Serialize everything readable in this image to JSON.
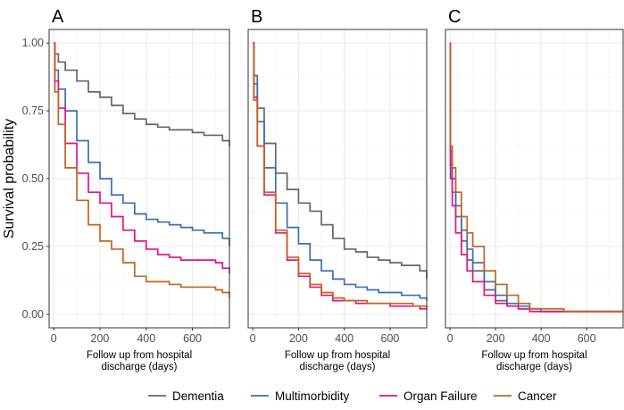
{
  "chart_data": {
    "type": "line",
    "ylabel": "Survival probability",
    "xlabel": "Follow up from hospital discharge (days)",
    "xlabel_lines": [
      "Follow up from hospital",
      "discharge (days)"
    ],
    "xlim": [
      -20,
      760
    ],
    "ylim": [
      -0.05,
      1.05
    ],
    "x_ticks": [
      0,
      200,
      400,
      600
    ],
    "y_ticks": [
      0,
      0.25,
      0.5,
      0.75,
      1
    ],
    "y_tick_labels": [
      "0.00",
      "0.25",
      "0.50",
      "0.75",
      "1.00"
    ],
    "grid": true,
    "legend_position": "bottom",
    "legend": [
      {
        "name": "Dementia",
        "color": "#666666"
      },
      {
        "name": "Multimorbidity",
        "color": "#3a6fb5"
      },
      {
        "name": "Organ Failure",
        "color": "#e4128a"
      },
      {
        "name": "Cancer",
        "color": "#c1651f"
      }
    ],
    "panels": [
      {
        "tag": "A",
        "series": [
          {
            "name": "Dementia",
            "color": "#666666",
            "x": [
              0,
              5,
              20,
              50,
              100,
              150,
              200,
              250,
              300,
              350,
              400,
              450,
              500,
              550,
              600,
              650,
              700,
              730,
              760
            ],
            "y": [
              1.0,
              0.96,
              0.93,
              0.9,
              0.86,
              0.82,
              0.8,
              0.77,
              0.74,
              0.72,
              0.7,
              0.69,
              0.68,
              0.68,
              0.67,
              0.66,
              0.66,
              0.64,
              0.62
            ]
          },
          {
            "name": "Multimorbidity",
            "color": "#3a6fb5",
            "x": [
              0,
              5,
              20,
              50,
              100,
              150,
              200,
              250,
              300,
              350,
              400,
              450,
              500,
              550,
              600,
              650,
              700,
              730,
              760
            ],
            "y": [
              1.0,
              0.9,
              0.83,
              0.75,
              0.64,
              0.56,
              0.5,
              0.44,
              0.41,
              0.37,
              0.35,
              0.34,
              0.33,
              0.32,
              0.31,
              0.3,
              0.3,
              0.28,
              0.25
            ]
          },
          {
            "name": "Organ Failure",
            "color": "#e4128a",
            "x": [
              0,
              5,
              20,
              50,
              100,
              150,
              200,
              250,
              300,
              350,
              400,
              450,
              500,
              550,
              600,
              650,
              700,
              730,
              760
            ],
            "y": [
              1.0,
              0.86,
              0.76,
              0.63,
              0.52,
              0.45,
              0.41,
              0.36,
              0.31,
              0.27,
              0.24,
              0.22,
              0.21,
              0.2,
              0.2,
              0.2,
              0.19,
              0.17,
              0.15
            ]
          },
          {
            "name": "Cancer",
            "color": "#c1651f",
            "x": [
              0,
              5,
              20,
              50,
              100,
              150,
              200,
              250,
              300,
              350,
              400,
              450,
              500,
              550,
              600,
              650,
              700,
              730,
              760
            ],
            "y": [
              1.0,
              0.82,
              0.7,
              0.54,
              0.42,
              0.33,
              0.27,
              0.24,
              0.19,
              0.14,
              0.12,
              0.12,
              0.11,
              0.1,
              0.1,
              0.1,
              0.09,
              0.08,
              0.06
            ]
          }
        ]
      },
      {
        "tag": "B",
        "series": [
          {
            "name": "Dementia",
            "color": "#666666",
            "x": [
              0,
              5,
              20,
              50,
              100,
              150,
              200,
              250,
              300,
              350,
              400,
              450,
              500,
              550,
              600,
              650,
              700,
              730,
              760
            ],
            "y": [
              1.0,
              0.88,
              0.76,
              0.63,
              0.52,
              0.46,
              0.41,
              0.38,
              0.33,
              0.28,
              0.24,
              0.23,
              0.21,
              0.2,
              0.19,
              0.18,
              0.18,
              0.16,
              0.13
            ]
          },
          {
            "name": "Multimorbidity",
            "color": "#3a6fb5",
            "x": [
              0,
              5,
              20,
              50,
              100,
              150,
              200,
              250,
              300,
              350,
              400,
              450,
              500,
              550,
              600,
              650,
              700,
              730,
              760
            ],
            "y": [
              1.0,
              0.85,
              0.71,
              0.54,
              0.41,
              0.32,
              0.26,
              0.2,
              0.16,
              0.13,
              0.11,
              0.1,
              0.09,
              0.08,
              0.08,
              0.07,
              0.07,
              0.06,
              0.05
            ]
          },
          {
            "name": "Organ Failure",
            "color": "#e4128a",
            "x": [
              0,
              5,
              20,
              50,
              100,
              150,
              200,
              250,
              300,
              350,
              400,
              450,
              500,
              550,
              600,
              650,
              700,
              730,
              760
            ],
            "y": [
              1.0,
              0.8,
              0.62,
              0.44,
              0.3,
              0.2,
              0.14,
              0.1,
              0.07,
              0.05,
              0.05,
              0.04,
              0.04,
              0.04,
              0.03,
              0.03,
              0.03,
              0.02,
              0.02
            ]
          },
          {
            "name": "Cancer",
            "color": "#c1651f",
            "x": [
              0,
              5,
              20,
              50,
              100,
              150,
              200,
              250,
              300,
              350,
              400,
              450,
              500,
              550,
              600,
              650,
              700,
              730,
              760
            ],
            "y": [
              1.0,
              0.79,
              0.62,
              0.45,
              0.31,
              0.21,
              0.15,
              0.11,
              0.08,
              0.06,
              0.05,
              0.05,
              0.04,
              0.04,
              0.04,
              0.04,
              0.03,
              0.03,
              0.02
            ]
          }
        ]
      },
      {
        "tag": "C",
        "series": [
          {
            "name": "Dementia",
            "color": "#666666",
            "x": [
              0,
              2,
              10,
              25,
              50,
              75,
              100,
              150,
              200,
              250,
              300,
              350,
              400,
              500,
              600,
              700,
              760
            ],
            "y": [
              1.0,
              0.55,
              0.45,
              0.36,
              0.27,
              0.2,
              0.16,
              0.09,
              0.05,
              0.03,
              0.02,
              0.02,
              0.01,
              0.01,
              0.01,
              0.01,
              0.01
            ]
          },
          {
            "name": "Multimorbidity",
            "color": "#3a6fb5",
            "x": [
              0,
              2,
              10,
              25,
              50,
              75,
              100,
              150,
              200,
              250,
              300,
              350,
              400,
              500,
              600,
              700,
              760
            ],
            "y": [
              1.0,
              0.6,
              0.5,
              0.4,
              0.31,
              0.24,
              0.19,
              0.12,
              0.07,
              0.04,
              0.03,
              0.02,
              0.01,
              0.01,
              0.01,
              0.01,
              0.01
            ]
          },
          {
            "name": "Organ Failure",
            "color": "#e4128a",
            "x": [
              0,
              2,
              10,
              25,
              50,
              75,
              100,
              150,
              200,
              250,
              300,
              350,
              400,
              500,
              600,
              700,
              760
            ],
            "y": [
              1.0,
              0.5,
              0.4,
              0.3,
              0.22,
              0.16,
              0.12,
              0.07,
              0.04,
              0.03,
              0.02,
              0.01,
              0.01,
              0.01,
              0.01,
              0.01,
              0.01
            ]
          },
          {
            "name": "Cancer",
            "color": "#c1651f",
            "x": [
              0,
              2,
              10,
              25,
              50,
              75,
              100,
              150,
              200,
              250,
              300,
              350,
              400,
              500,
              600,
              700,
              760
            ],
            "y": [
              1.0,
              0.62,
              0.54,
              0.45,
              0.36,
              0.3,
              0.25,
              0.16,
              0.11,
              0.07,
              0.04,
              0.02,
              0.02,
              0.01,
              0.01,
              0.01,
              0.01
            ]
          }
        ]
      }
    ]
  }
}
